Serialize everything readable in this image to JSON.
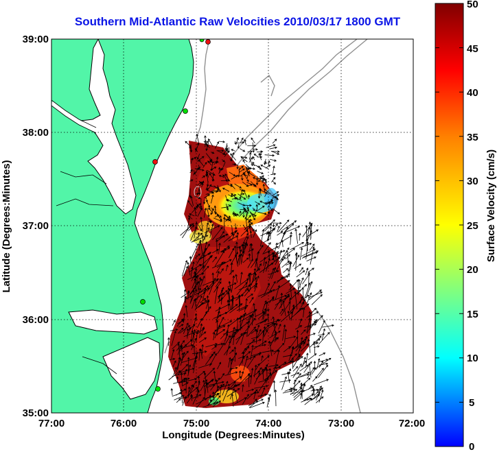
{
  "title": "Southern Mid-Atlantic Raw Velocities 2010/03/17 1800 GMT",
  "x_axis": {
    "label": "Longitude (Degrees:Minutes)",
    "ticks": [
      "77:00",
      "76:00",
      "75:00",
      "74:00",
      "73:00",
      "72:00"
    ]
  },
  "y_axis": {
    "label": "Latitude (Degrees:Minutes)",
    "ticks": [
      "39:00",
      "38:00",
      "37:00",
      "36:00",
      "35:00"
    ]
  },
  "colorbar": {
    "label": "Surface Velocity (cm/s)",
    "ticks": [
      "50",
      "45",
      "40",
      "35",
      "30",
      "25",
      "20",
      "15",
      "10",
      "5",
      "0"
    ],
    "min": 0,
    "max": 50,
    "colors": [
      "#0000ff",
      "#00ffff",
      "#ffff00",
      "#ff8000",
      "#ff0000",
      "#800000"
    ]
  },
  "colors": {
    "land": "#52f5a8",
    "coastline": "#000000",
    "bathymetry": "#909090",
    "grid": "#000000",
    "station_active": "#00dd00",
    "station_inactive": "#ee1111"
  },
  "map_extent": {
    "lon_west": -77.0,
    "lon_east": -72.0,
    "lat_south": 35.0,
    "lat_north": 39.0
  }
}
